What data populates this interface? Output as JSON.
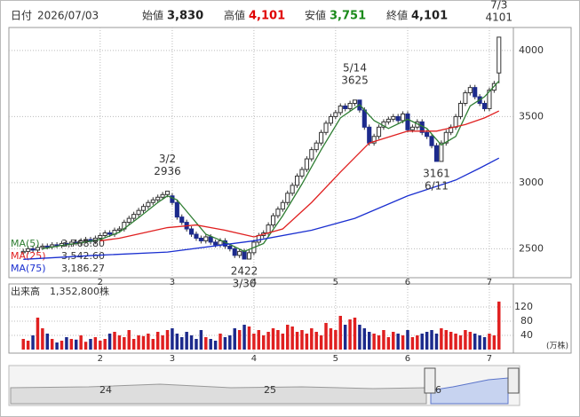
{
  "header": {
    "date_label": "日付",
    "date": "2026/07/03",
    "items": [
      {
        "label": "始値",
        "value": 3830,
        "value_label": "3,830",
        "color": "#222"
      },
      {
        "label": "高値",
        "value": 4101,
        "value_label": "4,101",
        "color": "#e00000"
      },
      {
        "label": "安値",
        "value": 3751,
        "value_label": "3,751",
        "color": "#1a8a1a"
      },
      {
        "label": "終値",
        "value": 4101,
        "value_label": "4,101",
        "color": "#222"
      }
    ]
  },
  "chart_data": {
    "type": "candlestick",
    "xlim": [
      -3,
      102
    ],
    "xticks": [
      {
        "value": 16,
        "label": "2"
      },
      {
        "value": 31,
        "label": "3"
      },
      {
        "value": 48,
        "label": "4"
      },
      {
        "value": 65,
        "label": "5"
      },
      {
        "value": 80,
        "label": "6"
      },
      {
        "value": 97,
        "label": "7"
      }
    ],
    "ylim": [
      2281,
      4174
    ],
    "yticks": [
      2500,
      3000,
      3500,
      4000
    ],
    "grid": true,
    "up_color": "#ffffff",
    "down_color": "#1c2a8c",
    "candles": {
      "open": [
        2470,
        2480,
        2500,
        2490,
        2510,
        2520,
        2515,
        2530,
        2525,
        2540,
        2535,
        2550,
        2545,
        2560,
        2570,
        2555,
        2580,
        2600,
        2620,
        2610,
        2640,
        2650,
        2700,
        2730,
        2760,
        2790,
        2820,
        2850,
        2870,
        2890,
        2910,
        2900,
        2850,
        2740,
        2700,
        2650,
        2610,
        2580,
        2560,
        2590,
        2550,
        2530,
        2560,
        2520,
        2500,
        2450,
        2480,
        2422,
        2470,
        2550,
        2600,
        2620,
        2680,
        2750,
        2800,
        2850,
        2920,
        2980,
        3050,
        3100,
        3180,
        3250,
        3300,
        3380,
        3450,
        3500,
        3530,
        3580,
        3560,
        3600,
        3625,
        3550,
        3420,
        3300,
        3350,
        3420,
        3460,
        3480,
        3500,
        3470,
        3520,
        3400,
        3420,
        3460,
        3380,
        3350,
        3280,
        3161,
        3300,
        3380,
        3420,
        3500,
        3600,
        3680,
        3720,
        3650,
        3600,
        3560,
        3700,
        3830
      ],
      "high": [
        2500,
        2520,
        2520,
        2530,
        2540,
        2540,
        2550,
        2550,
        2560,
        2560,
        2570,
        2570,
        2580,
        2590,
        2590,
        2600,
        2620,
        2640,
        2640,
        2660,
        2670,
        2720,
        2750,
        2780,
        2810,
        2840,
        2870,
        2890,
        2910,
        2930,
        2936,
        2920,
        2870,
        2760,
        2720,
        2670,
        2630,
        2600,
        2610,
        2610,
        2570,
        2580,
        2580,
        2540,
        2520,
        2500,
        2500,
        2490,
        2570,
        2620,
        2640,
        2700,
        2770,
        2820,
        2870,
        2940,
        3000,
        3070,
        3120,
        3200,
        3270,
        3320,
        3400,
        3470,
        3520,
        3550,
        3600,
        3600,
        3620,
        3625,
        3620,
        3570,
        3440,
        3370,
        3440,
        3480,
        3500,
        3520,
        3520,
        3540,
        3540,
        3440,
        3480,
        3480,
        3400,
        3370,
        3300,
        3320,
        3400,
        3440,
        3520,
        3620,
        3700,
        3740,
        3740,
        3670,
        3620,
        3720,
        3770,
        4101
      ],
      "low": [
        2450,
        2460,
        2470,
        2470,
        2490,
        2495,
        2495,
        2505,
        2505,
        2515,
        2515,
        2525,
        2525,
        2540,
        2535,
        2535,
        2560,
        2580,
        2590,
        2590,
        2620,
        2630,
        2680,
        2710,
        2740,
        2770,
        2800,
        2830,
        2850,
        2870,
        2890,
        2830,
        2720,
        2680,
        2630,
        2590,
        2560,
        2540,
        2540,
        2530,
        2510,
        2510,
        2500,
        2480,
        2430,
        2430,
        2422,
        2430,
        2450,
        2530,
        2580,
        2600,
        2660,
        2730,
        2780,
        2830,
        2900,
        2960,
        3030,
        3080,
        3160,
        3230,
        3280,
        3360,
        3430,
        3480,
        3510,
        3540,
        3540,
        3580,
        3530,
        3400,
        3280,
        3280,
        3330,
        3400,
        3440,
        3460,
        3450,
        3450,
        3380,
        3380,
        3400,
        3360,
        3330,
        3260,
        3161,
        3165,
        3280,
        3360,
        3400,
        3480,
        3580,
        3660,
        3630,
        3580,
        3540,
        3540,
        3680,
        3751
      ],
      "close": [
        2480,
        2500,
        2490,
        2510,
        2520,
        2515,
        2530,
        2525,
        2540,
        2535,
        2550,
        2545,
        2560,
        2570,
        2555,
        2580,
        2600,
        2620,
        2610,
        2640,
        2650,
        2700,
        2730,
        2760,
        2790,
        2820,
        2850,
        2870,
        2890,
        2910,
        2936,
        2850,
        2740,
        2700,
        2650,
        2610,
        2580,
        2560,
        2590,
        2550,
        2530,
        2560,
        2520,
        2500,
        2450,
        2480,
        2422,
        2470,
        2550,
        2600,
        2620,
        2680,
        2750,
        2800,
        2850,
        2920,
        2980,
        3050,
        3100,
        3180,
        3250,
        3300,
        3380,
        3450,
        3500,
        3530,
        3580,
        3560,
        3600,
        3625,
        3550,
        3420,
        3300,
        3350,
        3420,
        3460,
        3480,
        3500,
        3470,
        3520,
        3400,
        3420,
        3460,
        3380,
        3350,
        3280,
        3161,
        3300,
        3380,
        3420,
        3500,
        3600,
        3680,
        3720,
        3650,
        3600,
        3560,
        3700,
        3750,
        4101
      ]
    },
    "series": [
      {
        "name": "MA(5)",
        "color": "#2e7d32",
        "last_value": 3768.8,
        "last_value_label": "3,768.80",
        "x": [
          4,
          8,
          12,
          16,
          20,
          24,
          28,
          30,
          32,
          35,
          38,
          42,
          46,
          50,
          54,
          58,
          62,
          66,
          70,
          73,
          76,
          80,
          84,
          87,
          90,
          93,
          96,
          99
        ],
        "values": [
          2500,
          2525,
          2545,
          2570,
          2625,
          2735,
          2850,
          2900,
          2870,
          2740,
          2610,
          2550,
          2480,
          2540,
          2750,
          2990,
          3250,
          3490,
          3590,
          3470,
          3410,
          3480,
          3410,
          3285,
          3350,
          3580,
          3650,
          3768.8
        ]
      },
      {
        "name": "MA(25)",
        "color": "#e02020",
        "last_value": 3542.6,
        "last_value_label": "3,542.60",
        "x": [
          16,
          20,
          25,
          30,
          36,
          42,
          48,
          54,
          60,
          66,
          72,
          80,
          86,
          92,
          96,
          99
        ],
        "values": [
          2560,
          2580,
          2620,
          2660,
          2680,
          2640,
          2590,
          2650,
          2850,
          3080,
          3300,
          3390,
          3390,
          3440,
          3490,
          3542.6
        ]
      },
      {
        "name": "MA(75)",
        "color": "#1a2fd0",
        "last_value": 3186.27,
        "last_value_label": "3,186.27",
        "x": [
          0,
          15,
          30,
          48,
          60,
          69,
          80,
          90,
          95,
          99
        ],
        "values": [
          2420,
          2450,
          2475,
          2560,
          2640,
          2730,
          2900,
          3020,
          3110,
          3186.27
        ]
      }
    ],
    "annotations": [
      {
        "x": 30,
        "date": "3/2",
        "value": 2936,
        "side": "above"
      },
      {
        "x": 46,
        "date": "3/30",
        "value": 2422,
        "side": "below"
      },
      {
        "x": 69,
        "date": "5/14",
        "value": 3625,
        "side": "above"
      },
      {
        "x": 86,
        "date": "6/11",
        "value": 3161,
        "side": "below"
      },
      {
        "x": 99,
        "date": "7/3",
        "value": 4101,
        "side": "above"
      }
    ],
    "volume": {
      "title": "出来高　1,352,800株",
      "unit": "(万株)",
      "ylim": [
        0,
        170
      ],
      "yticks": [
        40,
        80,
        120
      ],
      "values": [
        30,
        25,
        40,
        90,
        60,
        45,
        30,
        20,
        25,
        35,
        30,
        28,
        40,
        22,
        30,
        35,
        25,
        30,
        45,
        50,
        40,
        35,
        55,
        30,
        40,
        38,
        45,
        30,
        50,
        40,
        55,
        60,
        45,
        35,
        50,
        40,
        30,
        55,
        35,
        30,
        25,
        45,
        35,
        40,
        60,
        55,
        70,
        65,
        45,
        55,
        40,
        50,
        60,
        55,
        45,
        70,
        65,
        50,
        55,
        45,
        60,
        50,
        40,
        75,
        60,
        55,
        95,
        70,
        85,
        90,
        70,
        60,
        50,
        45,
        40,
        55,
        35,
        50,
        45,
        40,
        55,
        35,
        40,
        45,
        50,
        55,
        45,
        60,
        55,
        50,
        45,
        40,
        55,
        50,
        45,
        40,
        35,
        45,
        40,
        135.28
      ],
      "up_color": "#e02020",
      "down_color": "#1c2a8c"
    },
    "navigator": {
      "labels": [
        "24",
        "25",
        "6"
      ]
    }
  }
}
